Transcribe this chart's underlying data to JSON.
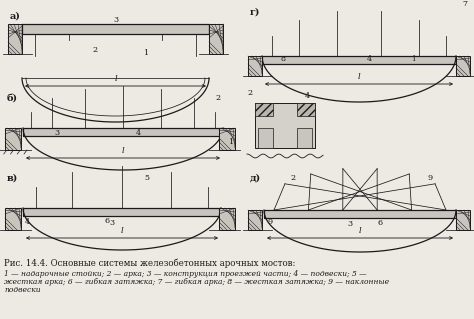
{
  "title": "Рис. 14.4. Основные системы железобетонных арочных мостов:",
  "caption_line1": "1 — надарочные стойки; 2 — арка; 3 — конструкция проезжей части; 4 — подвески; 5 —",
  "caption_line2": "жесткая арка; 6 — гибкая затяжка; 7 — гибкая арка; 8 — жесткая затяжка; 9 — наклонные",
  "caption_line3": "подвески",
  "bg_color": "#ede9e3",
  "line_color": "#1a1a1a",
  "hatch_color": "#888880",
  "font_size_title": 6.2,
  "font_size_caption": 5.4,
  "font_size_label": 7.0,
  "font_size_num": 5.8
}
